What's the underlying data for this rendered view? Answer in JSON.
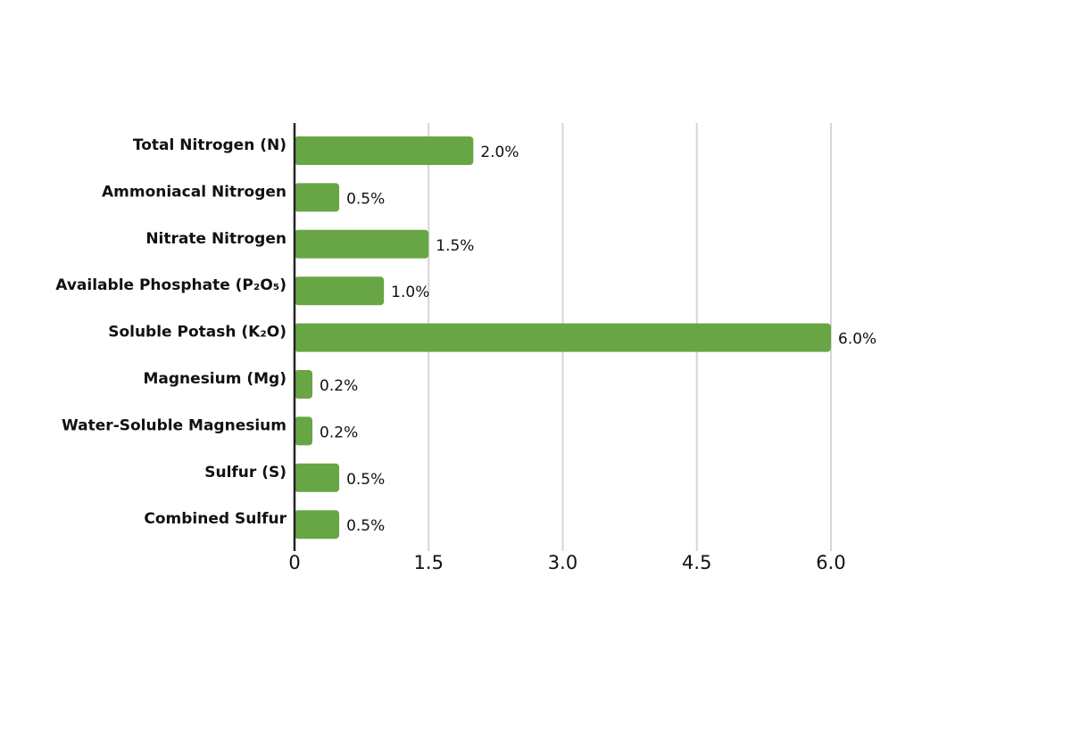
{
  "chart_data": {
    "type": "barh",
    "categories": [
      "Total Nitrogen (N)",
      "Ammoniacal Nitrogen",
      "Nitrate Nitrogen",
      "Available Phosphate (P₂O₅)",
      "Soluble Potash (K₂O)",
      "Magnesium (Mg)",
      "Water-Soluble Magnesium",
      "Sulfur (S)",
      "Combined Sulfur"
    ],
    "values": [
      2.0,
      0.5,
      1.5,
      1.0,
      6.0,
      0.2,
      0.2,
      0.5,
      0.5
    ],
    "value_labels": [
      "2.0%",
      "0.5%",
      "1.5%",
      "1.0%",
      "6.0%",
      "0.2%",
      "0.2%",
      "0.5%",
      "0.5%"
    ],
    "color": "#68a545",
    "xlim": [
      0,
      6
    ],
    "xticks": [
      0,
      1.5,
      {
        "value": 3,
        "label": "3.0"
      },
      4.5,
      {
        "value": 6,
        "label": "6.0"
      }
    ],
    "grid": true
  }
}
